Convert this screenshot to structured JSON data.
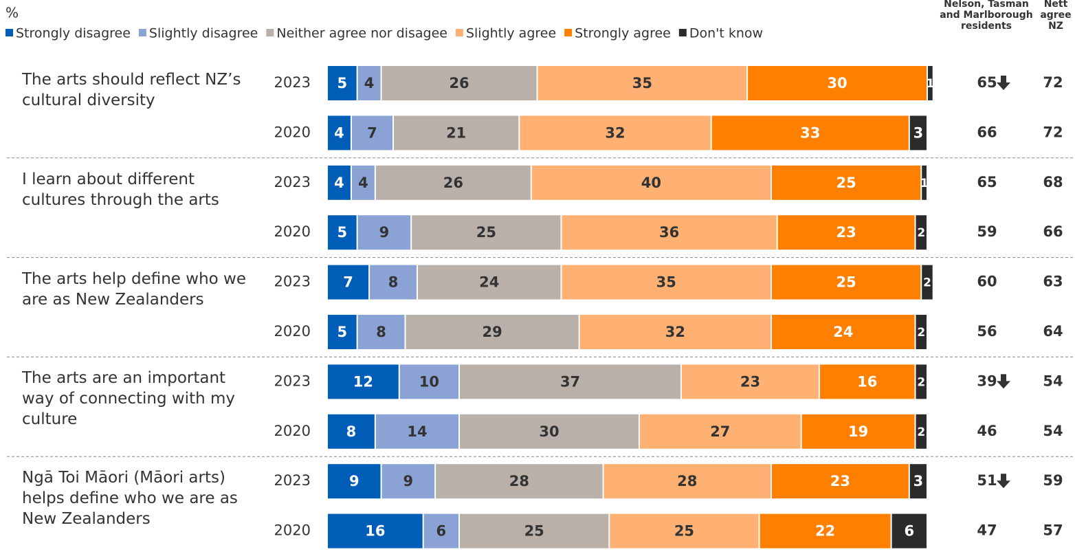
{
  "chart_data": {
    "type": "stacked_bar_horizontal",
    "unit_label": "%",
    "groups": [
      "The arts should reflect NZ’s cultural diversity",
      "I learn about different cultures through the arts",
      "The arts help define who we are as New Zealanders",
      "The arts are an important way of connecting with my culture",
      "Ngā Toi Māori (Māori arts) helps define who we are as New Zealanders"
    ],
    "categories": [
      "2023",
      "2020",
      "2023",
      "2020",
      "2023",
      "2020",
      "2023",
      "2020",
      "2023",
      "2020"
    ],
    "series": [
      {
        "name": "Strongly disagree",
        "color": "#005eb8",
        "label_color": "#ffffff",
        "values": [
          5,
          4,
          4,
          5,
          7,
          5,
          12,
          8,
          9,
          16
        ]
      },
      {
        "name": "Slightly disagree",
        "color": "#8aa3d4",
        "label_color": "#333333",
        "values": [
          4,
          7,
          4,
          9,
          8,
          8,
          10,
          14,
          9,
          6
        ]
      },
      {
        "name": "Neither agree nor disagee",
        "color": "#b9b0aa",
        "label_color": "#333333",
        "values": [
          26,
          21,
          26,
          25,
          24,
          29,
          37,
          30,
          28,
          25
        ]
      },
      {
        "name": "Slightly agree",
        "color": "#ffb173",
        "label_color": "#333333",
        "values": [
          35,
          32,
          40,
          36,
          35,
          32,
          23,
          27,
          28,
          25
        ]
      },
      {
        "name": "Strongly agree",
        "color": "#ff7f00",
        "label_color": "#ffffff",
        "values": [
          30,
          33,
          25,
          23,
          25,
          24,
          16,
          19,
          23,
          22
        ]
      },
      {
        "name": "Don't know",
        "color": "#2b2b2b",
        "label_color": "#ffffff",
        "values": [
          1,
          3,
          1,
          2,
          2,
          2,
          2,
          2,
          3,
          6
        ]
      }
    ],
    "nett_columns": [
      {
        "header": "Nelson, Tasman and Marlborough residents",
        "values": [
          65,
          66,
          65,
          59,
          60,
          56,
          39,
          46,
          51,
          47
        ],
        "significant_decrease": [
          true,
          false,
          false,
          false,
          false,
          false,
          true,
          false,
          true,
          false
        ]
      },
      {
        "header": "Nett agree NZ",
        "values": [
          72,
          72,
          68,
          66,
          63,
          64,
          54,
          54,
          59,
          57
        ]
      }
    ]
  }
}
